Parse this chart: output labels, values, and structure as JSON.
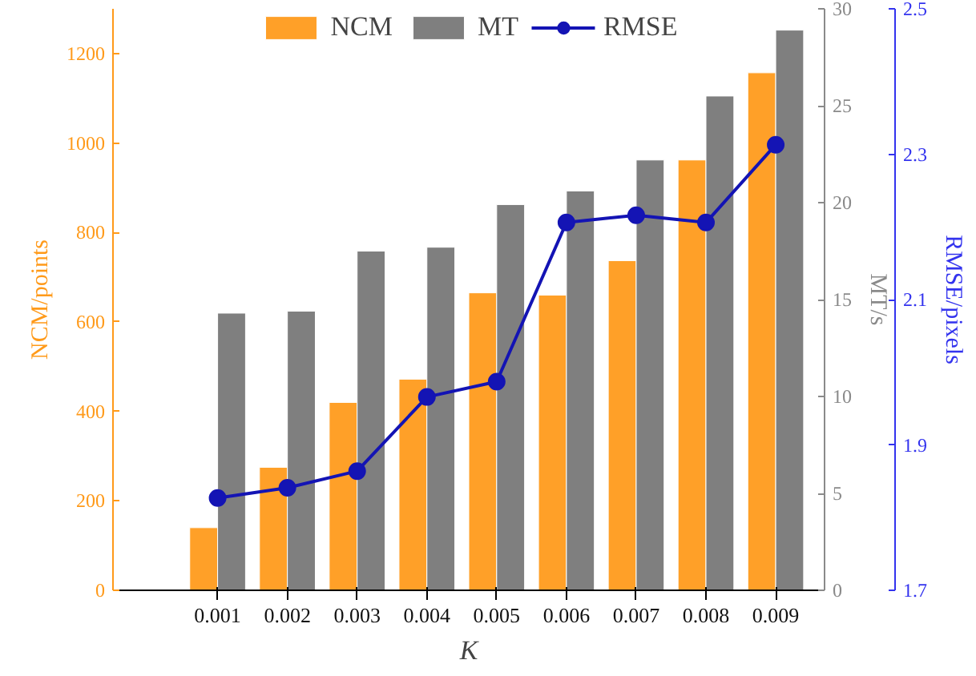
{
  "chart_data": {
    "type": "bar",
    "xlabel": "K",
    "ylabel": "NCM/points",
    "y2label": "MT/s",
    "y3label": "RMSE/pixels",
    "categories": [
      "0.001",
      "0.002",
      "0.003",
      "0.004",
      "0.005",
      "0.006",
      "0.007",
      "0.008",
      "0.009"
    ],
    "series": [
      {
        "name": "NCM",
        "color": "#ffa028",
        "values": [
          140,
          275,
          420,
          472,
          665,
          660,
          737,
          962,
          1157
        ]
      },
      {
        "name": "MT",
        "axis": "y2",
        "color": "#7f7f7f",
        "values": [
          14.3,
          14.4,
          17.5,
          17.7,
          19.9,
          20.6,
          22.2,
          25.5,
          28.9
        ]
      },
      {
        "name": "RMSE",
        "type": "line",
        "axis": "y3",
        "color": "#1414b4",
        "marker": "circle",
        "values": [
          1.827,
          1.841,
          1.864,
          1.966,
          1.987,
          2.206,
          2.216,
          2.206,
          2.313
        ]
      }
    ],
    "ylim": [
      0,
      1300
    ],
    "yticks": [
      0,
      200,
      400,
      600,
      800,
      1000,
      1200
    ],
    "y2lim": [
      0,
      30
    ],
    "y2ticks": [
      0,
      5,
      10,
      15,
      20,
      25,
      30
    ],
    "y3lim": [
      1.7,
      2.5
    ],
    "y3ticks": [
      1.7,
      1.9,
      2.1,
      2.3,
      2.5
    ],
    "legend": "top",
    "grid": false
  }
}
